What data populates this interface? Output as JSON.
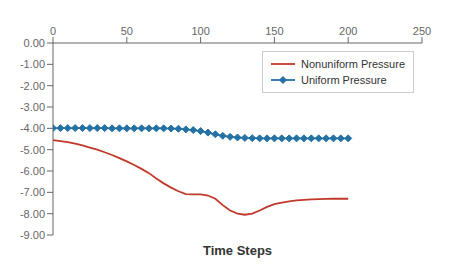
{
  "chart_data": {
    "type": "line",
    "xlabel": "Time Steps",
    "xlim": [
      0,
      250
    ],
    "ylim": [
      -9.0,
      0.0
    ],
    "xticks": [
      0,
      50,
      100,
      150,
      200,
      250
    ],
    "yticks": [
      {
        "value": 0.0,
        "label": "0.00"
      },
      {
        "value": -1.0,
        "label": "-1.00"
      },
      {
        "value": -2.0,
        "label": "-2.00"
      },
      {
        "value": -3.0,
        "label": "-3.00"
      },
      {
        "value": -4.0,
        "label": "-4.00"
      },
      {
        "value": -5.0,
        "label": "-5.00"
      },
      {
        "value": -6.0,
        "label": "-6.00"
      },
      {
        "value": -7.0,
        "label": "-7.00"
      },
      {
        "value": -8.0,
        "label": "-8.00"
      },
      {
        "value": -9.0,
        "label": "-9.00"
      }
    ],
    "grid": false,
    "legend": "upper right",
    "x": [
      0,
      5,
      10,
      15,
      20,
      25,
      30,
      35,
      40,
      45,
      50,
      55,
      60,
      65,
      70,
      75,
      80,
      85,
      90,
      95,
      100,
      105,
      110,
      115,
      120,
      125,
      130,
      135,
      140,
      145,
      150,
      155,
      160,
      165,
      170,
      175,
      180,
      185,
      190,
      195,
      200
    ],
    "series": [
      {
        "name": "Nonuniform Pressure",
        "color": "#c0392b",
        "marker": "none",
        "values": [
          -4.55,
          -4.6,
          -4.65,
          -4.72,
          -4.8,
          -4.9,
          -5.0,
          -5.12,
          -5.25,
          -5.4,
          -5.55,
          -5.72,
          -5.9,
          -6.1,
          -6.35,
          -6.58,
          -6.78,
          -6.95,
          -7.08,
          -7.1,
          -7.1,
          -7.15,
          -7.3,
          -7.6,
          -7.85,
          -8.0,
          -8.05,
          -8.0,
          -7.85,
          -7.68,
          -7.55,
          -7.48,
          -7.42,
          -7.38,
          -7.35,
          -7.33,
          -7.32,
          -7.31,
          -7.3,
          -7.3,
          -7.3
        ]
      },
      {
        "name": "Uniform Pressure",
        "color": "#2471a3",
        "marker": "diamond",
        "values": [
          -3.99,
          -3.99,
          -3.99,
          -3.99,
          -3.99,
          -3.99,
          -3.99,
          -3.99,
          -4.0,
          -4.0,
          -4.0,
          -4.0,
          -4.0,
          -4.0,
          -4.0,
          -4.0,
          -4.01,
          -4.02,
          -4.05,
          -4.08,
          -4.13,
          -4.2,
          -4.28,
          -4.35,
          -4.4,
          -4.43,
          -4.45,
          -4.46,
          -4.47,
          -4.47,
          -4.47,
          -4.47,
          -4.47,
          -4.47,
          -4.47,
          -4.47,
          -4.47,
          -4.47,
          -4.47,
          -4.47,
          -4.47
        ]
      }
    ]
  }
}
